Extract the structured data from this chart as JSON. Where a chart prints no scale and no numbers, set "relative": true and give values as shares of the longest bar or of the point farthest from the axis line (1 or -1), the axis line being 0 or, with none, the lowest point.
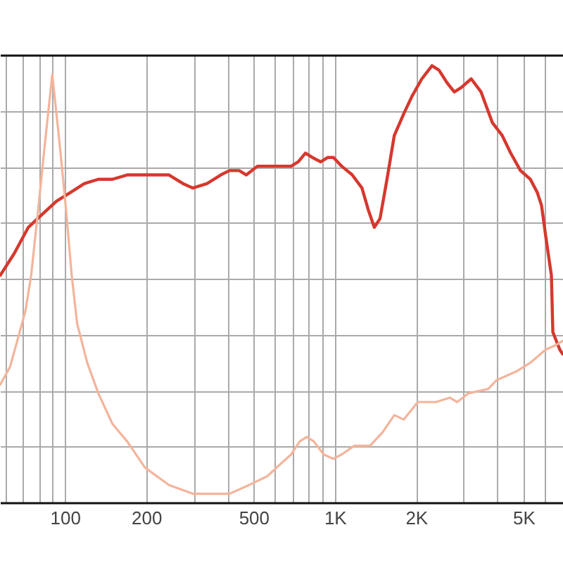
{
  "chart_data": {
    "type": "line",
    "relative": true,
    "log": "x",
    "xlim": [
      57.5,
      7000
    ],
    "xticks": [
      {
        "value": 60,
        "label": null
      },
      {
        "value": 70,
        "label": null
      },
      {
        "value": 80,
        "label": null
      },
      {
        "value": 90,
        "label": null
      },
      100,
      200,
      {
        "value": 300,
        "label": null
      },
      {
        "value": 400,
        "label": null
      },
      500,
      {
        "value": 600,
        "label": null
      },
      {
        "value": 700,
        "label": null
      },
      {
        "value": 800,
        "label": null
      },
      {
        "value": 900,
        "label": null
      },
      {
        "value": 1000,
        "label": "1K"
      },
      {
        "value": 2000,
        "label": "2K"
      },
      {
        "value": 3000,
        "label": null
      },
      {
        "value": 4000,
        "label": null
      },
      {
        "value": 5000,
        "label": "5K"
      },
      {
        "value": 6000,
        "label": null
      },
      {
        "value": 7000,
        "label": null
      }
    ],
    "grid": true,
    "tick_labels": "x",
    "series": [
      {
        "color": "#d6382e",
        "x": [
          57.6,
          64.9,
          73.2,
          82.5,
          93.1,
          105,
          118,
          133,
          150,
          170,
          191,
          215,
          243,
          274,
          298,
          336,
          378,
          407,
          442,
          470,
          517,
          562,
          634,
          689,
          732,
          778,
          825,
          887,
          942,
          988,
          1060,
          1160,
          1260,
          1330,
          1400,
          1470,
          1560,
          1660,
          1800,
          1930,
          2100,
          2290,
          2430,
          2610,
          2770,
          2940,
          3200,
          3480,
          3830,
          4170,
          4480,
          4870,
          5300,
          5620,
          5830,
          6040,
          6340,
          6420,
          6810,
          6980
        ],
        "values": [
          0.52,
          0.57,
          0.63,
          0.66,
          0.69,
          0.71,
          0.73,
          0.74,
          0.74,
          0.75,
          0.75,
          0.75,
          0.75,
          0.73,
          0.72,
          0.73,
          0.75,
          0.76,
          0.76,
          0.75,
          0.77,
          0.77,
          0.77,
          0.77,
          0.78,
          0.8,
          0.79,
          0.78,
          0.79,
          0.79,
          0.77,
          0.75,
          0.72,
          0.67,
          0.63,
          0.65,
          0.74,
          0.84,
          0.89,
          0.93,
          0.97,
          1.0,
          0.99,
          0.96,
          0.94,
          0.95,
          0.97,
          0.94,
          0.87,
          0.84,
          0.8,
          0.76,
          0.74,
          0.71,
          0.68,
          0.61,
          0.52,
          0.39,
          0.35,
          0.34
        ]
      },
      {
        "color": "#f3b49b",
        "x": [
          57.6,
          62.6,
          67.3,
          71.5,
          75.0,
          79.6,
          84.6,
          89.8,
          95.3,
          101,
          106,
          111,
          121,
          133,
          150,
          170,
          198,
          243,
          298,
          348,
          407,
          481,
          562,
          634,
          689,
          741,
          787,
          835,
          909,
          988,
          1060,
          1180,
          1350,
          1500,
          1660,
          1800,
          2030,
          2370,
          2670,
          2840,
          3130,
          3700,
          3970,
          4700,
          5300,
          6040,
          6570,
          6980
        ],
        "values": [
          0.27,
          0.31,
          0.38,
          0.44,
          0.52,
          0.67,
          0.83,
          0.98,
          0.83,
          0.67,
          0.52,
          0.41,
          0.32,
          0.25,
          0.18,
          0.14,
          0.08,
          0.04,
          0.02,
          0.02,
          0.02,
          0.04,
          0.06,
          0.09,
          0.11,
          0.14,
          0.15,
          0.14,
          0.11,
          0.1,
          0.11,
          0.13,
          0.13,
          0.16,
          0.2,
          0.19,
          0.23,
          0.23,
          0.24,
          0.23,
          0.25,
          0.26,
          0.28,
          0.3,
          0.32,
          0.35,
          0.36,
          0.37
        ]
      }
    ]
  }
}
